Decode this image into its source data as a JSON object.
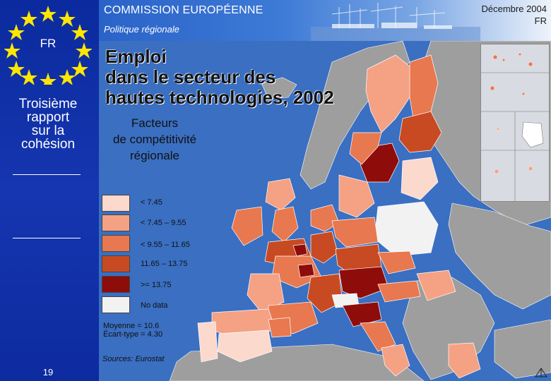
{
  "left_panel": {
    "flag_code": "FR",
    "report_title_lines": [
      "Troisième",
      "rapport",
      "sur la",
      "cohésion"
    ],
    "page_number": "19"
  },
  "header": {
    "organization": "COMMISSION EUROPÉENNE",
    "subtitle": "Politique régionale",
    "date": "Décembre 2004",
    "language": "FR"
  },
  "map": {
    "title_lines": [
      "Emploi",
      "dans le secteur des",
      "hautes technologies, 2002"
    ],
    "subtitle_lines": [
      "Facteurs",
      "de compétitivité",
      "régionale"
    ],
    "legend": [
      {
        "label": "< 7.45",
        "color": "#fbd9cc"
      },
      {
        "label": "< 7.45 – 9.55",
        "color": "#f5a184"
      },
      {
        "label": "< 9.55 – 11.65",
        "color": "#e8784f"
      },
      {
        "label": "11.65 – 13.75",
        "color": "#c84a22"
      },
      {
        "label": ">= 13.75",
        "color": "#8e0d0b"
      },
      {
        "label": "No data",
        "color": "#f2f2f2"
      }
    ],
    "stats": {
      "mean": "Moyenne = 10.6",
      "std": "Écart-type = 4.30"
    },
    "sources": "Sources: Eurostat"
  },
  "colors": {
    "sea": "#3a6fc2",
    "non_eu_land": "#9e9e9e",
    "panel_blue": "#0b2a9e",
    "star_yellow": "#ffe600"
  }
}
